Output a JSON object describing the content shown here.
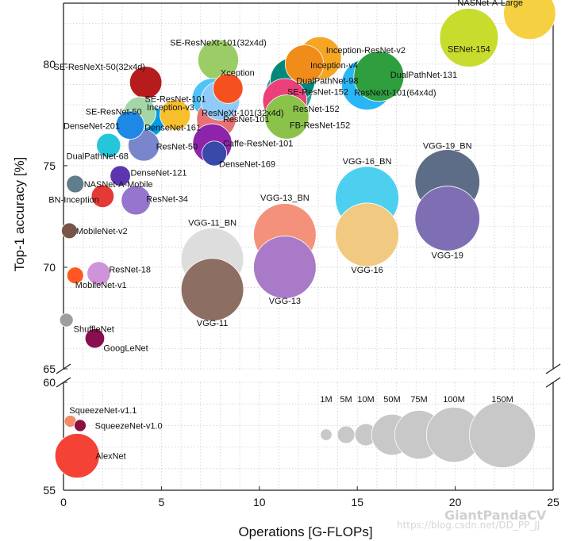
{
  "chart_data": {
    "type": "scatter",
    "xlabel": "Operations [G-FLOPs]",
    "ylabel": "Top-1 accuracy [%]",
    "xlim": [
      0,
      25
    ],
    "ylim_upper": [
      65,
      83
    ],
    "ylim_lower": [
      55,
      60
    ],
    "x_ticks": [
      0,
      5,
      10,
      15,
      20,
      25
    ],
    "y_ticks_upper": [
      65,
      70,
      75,
      80
    ],
    "y_ticks_lower": [
      55,
      60
    ],
    "grid": true,
    "axis_break": true,
    "size_legend": [
      {
        "label": "1M",
        "params": 1
      },
      {
        "label": "5M",
        "params": 5
      },
      {
        "label": "10M",
        "params": 10
      },
      {
        "label": "50M",
        "params": 50
      },
      {
        "label": "75M",
        "params": 75
      },
      {
        "label": "100M",
        "params": 100
      },
      {
        "label": "150M",
        "params": 150
      }
    ],
    "points": [
      {
        "name": "NASNet-A-Large",
        "x": 23.8,
        "y": 82.5,
        "params": 88,
        "color": "#f5d142"
      },
      {
        "name": "SENet-154",
        "x": 20.7,
        "y": 81.3,
        "params": 115,
        "color": "#c8dc2e"
      },
      {
        "name": "SE-ResNeXt-101(32x4d)",
        "x": 7.9,
        "y": 80.2,
        "params": 49,
        "color": "#9ccc65"
      },
      {
        "name": "Inception-ResNet-v2",
        "x": 13.1,
        "y": 80.3,
        "params": 55,
        "color": "#f5a623"
      },
      {
        "name": "Inception-v4",
        "x": 12.3,
        "y": 80.0,
        "params": 43,
        "color": "#f08c1a"
      },
      {
        "name": "DualPathNet-131",
        "x": 16.1,
        "y": 79.4,
        "params": 80,
        "color": "#2e9e3e"
      },
      {
        "name": "SE-ResNeXt-50(32x4d)",
        "x": 4.2,
        "y": 79.1,
        "params": 28,
        "color": "#b71c1c"
      },
      {
        "name": "Xception",
        "x": 8.4,
        "y": 78.8,
        "params": 23,
        "color": "#f4511e"
      },
      {
        "name": "DualPathNet-98",
        "x": 11.7,
        "y": 79.2,
        "params": 62,
        "color": "#00897b"
      },
      {
        "name": "SE-ResNet-101",
        "x": 7.6,
        "y": 78.3,
        "params": 49,
        "color": "#4fc3f7"
      },
      {
        "name": "ResNeXt-101(32x4d)",
        "x": 8.0,
        "y": 78.2,
        "params": 44,
        "color": "#90caf9"
      },
      {
        "name": "SE-ResNet-152",
        "x": 11.5,
        "y": 78.6,
        "params": 67,
        "color": "#26a69a"
      },
      {
        "name": "ResNeXt-101(64x4d)",
        "x": 15.5,
        "y": 79.0,
        "params": 84,
        "color": "#29b6f6"
      },
      {
        "name": "ResNet-152",
        "x": 11.3,
        "y": 78.2,
        "params": 60,
        "color": "#ec407a"
      },
      {
        "name": "FB-ResNet-152",
        "x": 11.4,
        "y": 77.4,
        "params": 60,
        "color": "#8bc34a"
      },
      {
        "name": "SE-ResNet-50",
        "x": 3.9,
        "y": 77.6,
        "params": 28,
        "color": "#a5d6a7"
      },
      {
        "name": "Inception-v3",
        "x": 5.7,
        "y": 77.5,
        "params": 24,
        "color": "#f9c02d"
      },
      {
        "name": "ResNet-101",
        "x": 7.8,
        "y": 77.3,
        "params": 45,
        "color": "#e57373"
      },
      {
        "name": "DenseNet-201",
        "x": 3.4,
        "y": 77.0,
        "params": 20,
        "color": "#1e88e5"
      },
      {
        "name": "DenseNet-161",
        "x": 4.3,
        "y": 77.2,
        "params": 29,
        "color": "#039be5"
      },
      {
        "name": "DualPathNet-68",
        "x": 2.3,
        "y": 76.0,
        "params": 13,
        "color": "#26c6da"
      },
      {
        "name": "ResNet-50",
        "x": 4.1,
        "y": 76.0,
        "params": 26,
        "color": "#7986cb"
      },
      {
        "name": "Caffe-ResNet-101",
        "x": 7.6,
        "y": 76.1,
        "params": 45,
        "color": "#8e24aa"
      },
      {
        "name": "DenseNet-169",
        "x": 7.7,
        "y": 75.6,
        "params": 14,
        "color": "#3949ab"
      },
      {
        "name": "DenseNet-121",
        "x": 2.9,
        "y": 74.5,
        "params": 8,
        "color": "#5e35b1"
      },
      {
        "name": "NASNet-A-Mobile",
        "x": 0.6,
        "y": 74.1,
        "params": 5,
        "color": "#607d8b"
      },
      {
        "name": "BN-Inception",
        "x": 2.0,
        "y": 73.5,
        "params": 11,
        "color": "#e53935"
      },
      {
        "name": "ResNet-34",
        "x": 3.7,
        "y": 73.3,
        "params": 22,
        "color": "#9575cd"
      },
      {
        "name": "MobileNet-v2",
        "x": 0.3,
        "y": 71.8,
        "params": 3.5,
        "color": "#795548"
      },
      {
        "name": "ResNet-18",
        "x": 1.8,
        "y": 69.7,
        "params": 12,
        "color": "#ce93d8"
      },
      {
        "name": "MobileNet-v1",
        "x": 0.6,
        "y": 69.6,
        "params": 4.2,
        "color": "#ff5722"
      },
      {
        "name": "ShuffleNet",
        "x": 0.15,
        "y": 67.4,
        "params": 2,
        "color": "#9e9e9e"
      },
      {
        "name": "GoogLeNet",
        "x": 1.6,
        "y": 66.5,
        "params": 7,
        "color": "#880e4f"
      },
      {
        "name": "VGG-19_BN",
        "x": 19.6,
        "y": 74.2,
        "params": 144,
        "color": "#5d6d87"
      },
      {
        "name": "VGG-19",
        "x": 19.6,
        "y": 72.4,
        "params": 144,
        "color": "#7e6fb5"
      },
      {
        "name": "VGG-16_BN",
        "x": 15.5,
        "y": 73.4,
        "params": 138,
        "color": "#4dd0f0"
      },
      {
        "name": "VGG-16",
        "x": 15.5,
        "y": 71.6,
        "params": 138,
        "color": "#f2c980"
      },
      {
        "name": "VGG-13_BN",
        "x": 11.3,
        "y": 71.6,
        "params": 133,
        "color": "#f4917a"
      },
      {
        "name": "VGG-13",
        "x": 11.3,
        "y": 70.0,
        "params": 133,
        "color": "#a97ac8"
      },
      {
        "name": "VGG-11_BN",
        "x": 7.6,
        "y": 70.4,
        "params": 133,
        "color": "#dddddd"
      },
      {
        "name": "VGG-11",
        "x": 7.6,
        "y": 68.9,
        "params": 133,
        "color": "#8d6e63"
      },
      {
        "name": "SqueezeNet-v1.1",
        "x": 0.35,
        "y": 58.2,
        "params": 1.2,
        "color": "#f28b68"
      },
      {
        "name": "SqueezeNet-v1.0",
        "x": 0.85,
        "y": 58.0,
        "params": 1.2,
        "color": "#8b0f3f"
      },
      {
        "name": "AlexNet",
        "x": 0.7,
        "y": 56.6,
        "params": 61,
        "color": "#f44336"
      }
    ]
  },
  "watermark": {
    "brand": "GiantPandaCV",
    "url": "https://blog.csdn.net/DD_PP_JJ"
  }
}
